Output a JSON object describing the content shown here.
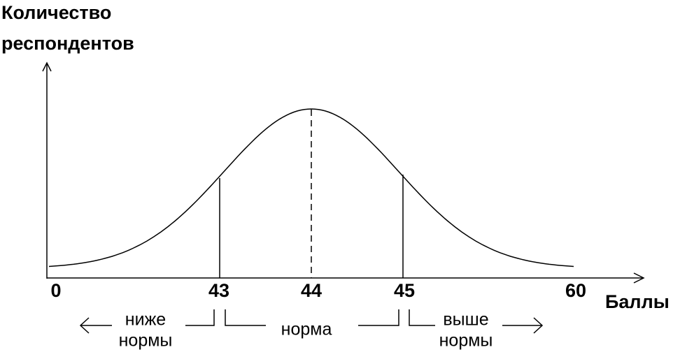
{
  "axes": {
    "y_label": [
      "Количество",
      "респондентов"
    ],
    "x_label": "Баллы",
    "ticks": [
      "0",
      "43",
      "44",
      "45",
      "60"
    ]
  },
  "regions": [
    {
      "label": [
        "ниже",
        "нормы"
      ]
    },
    {
      "label": [
        "норма"
      ]
    },
    {
      "label": [
        "выше",
        "нормы"
      ]
    }
  ]
}
